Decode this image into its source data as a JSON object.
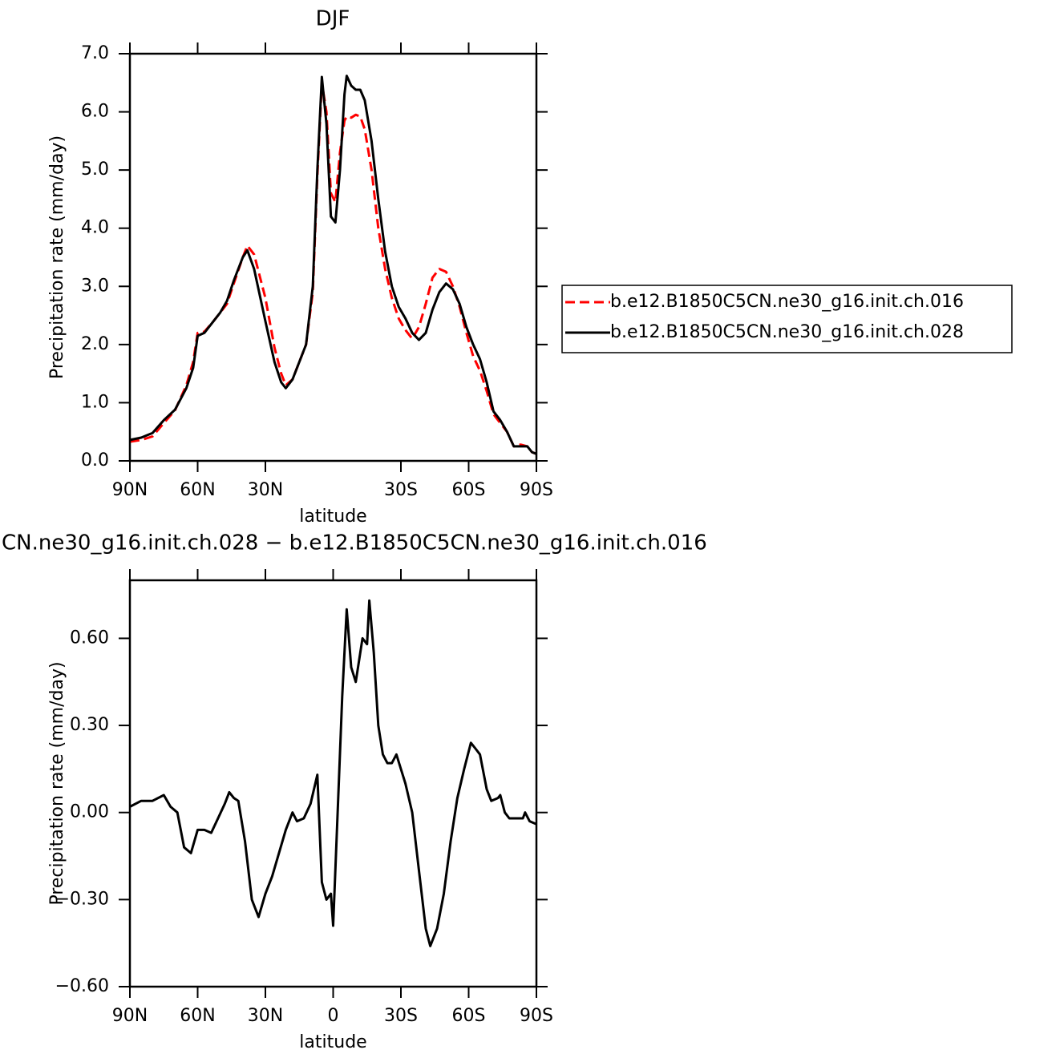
{
  "chart_data": [
    {
      "type": "line",
      "title": "DJF",
      "xlabel": "latitude",
      "ylabel": "Precipitation rate (mm/day)",
      "xlim": [
        90,
        -90
      ],
      "ylim": [
        0,
        7
      ],
      "xticks": [
        {
          "value": 90,
          "label": "90N"
        },
        {
          "value": 60,
          "label": "60N"
        },
        {
          "value": 30,
          "label": "30N"
        },
        {
          "value": -30,
          "label": "30S"
        },
        {
          "value": -60,
          "label": "60S"
        },
        {
          "value": -90,
          "label": "90S"
        }
      ],
      "yticks": [
        {
          "value": 0,
          "label": "0.0"
        },
        {
          "value": 1,
          "label": "1.0"
        },
        {
          "value": 2,
          "label": "2.0"
        },
        {
          "value": 3,
          "label": "3.0"
        },
        {
          "value": 4,
          "label": "4.0"
        },
        {
          "value": 5,
          "label": "5.0"
        },
        {
          "value": 6,
          "label": "6.0"
        },
        {
          "value": 7,
          "label": "7.0"
        }
      ],
      "legend": "right",
      "x": [
        90,
        85,
        80,
        75,
        70,
        65,
        62,
        60,
        57,
        53,
        50,
        47,
        44,
        40,
        38,
        35,
        30,
        26,
        23,
        21,
        18,
        15,
        12,
        9,
        7,
        5,
        3,
        1,
        -1,
        -3,
        -5,
        -6,
        -8,
        -10,
        -12,
        -14,
        -17,
        -20,
        -23,
        -26,
        -29,
        -32,
        -35,
        -38,
        -41,
        -44,
        -47,
        -50,
        -53,
        -56,
        -59,
        -62,
        -65,
        -68,
        -71,
        -74,
        -77,
        -80,
        -83,
        -86,
        -88,
        -90
      ],
      "series": [
        {
          "name": "b.e12.B1850C5CN.ne30_g16.init.ch.016",
          "color": "#ff0000",
          "style": "dashed",
          "values": [
            0.33,
            0.36,
            0.42,
            0.65,
            0.87,
            1.3,
            1.7,
            2.2,
            2.22,
            2.4,
            2.55,
            2.7,
            3.05,
            3.5,
            3.7,
            3.55,
            2.8,
            1.95,
            1.5,
            1.3,
            1.4,
            1.7,
            2.0,
            2.9,
            4.9,
            6.5,
            6.0,
            4.6,
            4.45,
            5.3,
            5.85,
            5.92,
            5.9,
            5.95,
            5.92,
            5.7,
            5.0,
            4.0,
            3.3,
            2.8,
            2.45,
            2.25,
            2.1,
            2.3,
            2.7,
            3.15,
            3.3,
            3.25,
            3.0,
            2.65,
            2.2,
            1.8,
            1.55,
            1.2,
            0.8,
            0.65,
            0.5,
            0.25,
            0.28,
            0.25,
            0.15,
            0.12
          ]
        },
        {
          "name": "b.e12.B1850C5CN.ne30_g16.init.ch.028",
          "color": "#000000",
          "style": "solid",
          "values": [
            0.36,
            0.4,
            0.48,
            0.7,
            0.88,
            1.25,
            1.6,
            2.15,
            2.2,
            2.4,
            2.55,
            2.75,
            3.1,
            3.5,
            3.62,
            3.3,
            2.4,
            1.7,
            1.35,
            1.25,
            1.4,
            1.7,
            2.0,
            3.0,
            5.0,
            6.6,
            5.8,
            4.2,
            4.1,
            5.0,
            6.3,
            6.62,
            6.45,
            6.38,
            6.38,
            6.2,
            5.5,
            4.5,
            3.6,
            3.0,
            2.65,
            2.45,
            2.2,
            2.08,
            2.2,
            2.6,
            2.9,
            3.05,
            2.95,
            2.7,
            2.3,
            2.0,
            1.75,
            1.35,
            0.85,
            0.7,
            0.5,
            0.25,
            0.25,
            0.25,
            0.15,
            0.12
          ]
        }
      ]
    },
    {
      "type": "line",
      "title": "CN.ne30_g16.init.ch.028 − b.e12.B1850C5CN.ne30_g16.init.ch.016",
      "xlabel": "latitude",
      "ylabel": "Precipitation rate (mm/day)",
      "xlim": [
        90,
        -90
      ],
      "ylim": [
        -0.6,
        0.8
      ],
      "xticks": [
        {
          "value": 90,
          "label": "90N"
        },
        {
          "value": 60,
          "label": "60N"
        },
        {
          "value": 30,
          "label": "30N"
        },
        0,
        {
          "value": -30,
          "label": "30S"
        },
        {
          "value": -60,
          "label": "60S"
        },
        {
          "value": -90,
          "label": "90S"
        }
      ],
      "yticks": [
        {
          "value": -0.6,
          "label": "−0.60"
        },
        {
          "value": -0.3,
          "label": "−0.30"
        },
        {
          "value": 0,
          "label": "0.00"
        },
        {
          "value": 0.3,
          "label": "0.30"
        },
        {
          "value": 0.6,
          "label": "0.60"
        }
      ],
      "x": [
        90,
        85,
        80,
        75,
        72,
        69,
        66,
        63,
        60,
        57,
        54,
        51,
        48,
        46,
        44,
        42,
        39,
        36,
        33,
        30,
        27,
        24,
        21,
        18,
        16,
        13,
        10,
        7,
        5,
        3,
        1,
        0,
        -2,
        -4,
        -6,
        -8,
        -10,
        -12,
        -13,
        -15,
        -16,
        -18,
        -20,
        -22,
        -24,
        -26,
        -28,
        -30,
        -32,
        -35,
        -38,
        -41,
        -43,
        -46,
        -49,
        -52,
        -55,
        -58,
        -61,
        -63,
        -65,
        -68,
        -70,
        -73,
        -74,
        -76,
        -78,
        -81,
        -84,
        -85,
        -87,
        -90
      ],
      "series": [
        {
          "color": "#000000",
          "style": "solid",
          "values": [
            0.02,
            0.04,
            0.04,
            0.06,
            0.02,
            0.0,
            -0.12,
            -0.14,
            -0.06,
            -0.06,
            -0.07,
            -0.02,
            0.03,
            0.07,
            0.05,
            0.04,
            -0.1,
            -0.3,
            -0.36,
            -0.28,
            -0.22,
            -0.14,
            -0.06,
            0.0,
            -0.03,
            -0.02,
            0.03,
            0.13,
            -0.24,
            -0.3,
            -0.28,
            -0.39,
            0.0,
            0.4,
            0.7,
            0.5,
            0.45,
            0.55,
            0.6,
            0.58,
            0.73,
            0.55,
            0.3,
            0.2,
            0.17,
            0.17,
            0.2,
            0.15,
            0.1,
            0.0,
            -0.2,
            -0.4,
            -0.46,
            -0.4,
            -0.28,
            -0.1,
            0.05,
            0.15,
            0.24,
            0.22,
            0.2,
            0.08,
            0.04,
            0.05,
            0.06,
            0.0,
            -0.02,
            -0.02,
            -0.02,
            0.0,
            -0.03,
            -0.04
          ]
        }
      ]
    }
  ]
}
